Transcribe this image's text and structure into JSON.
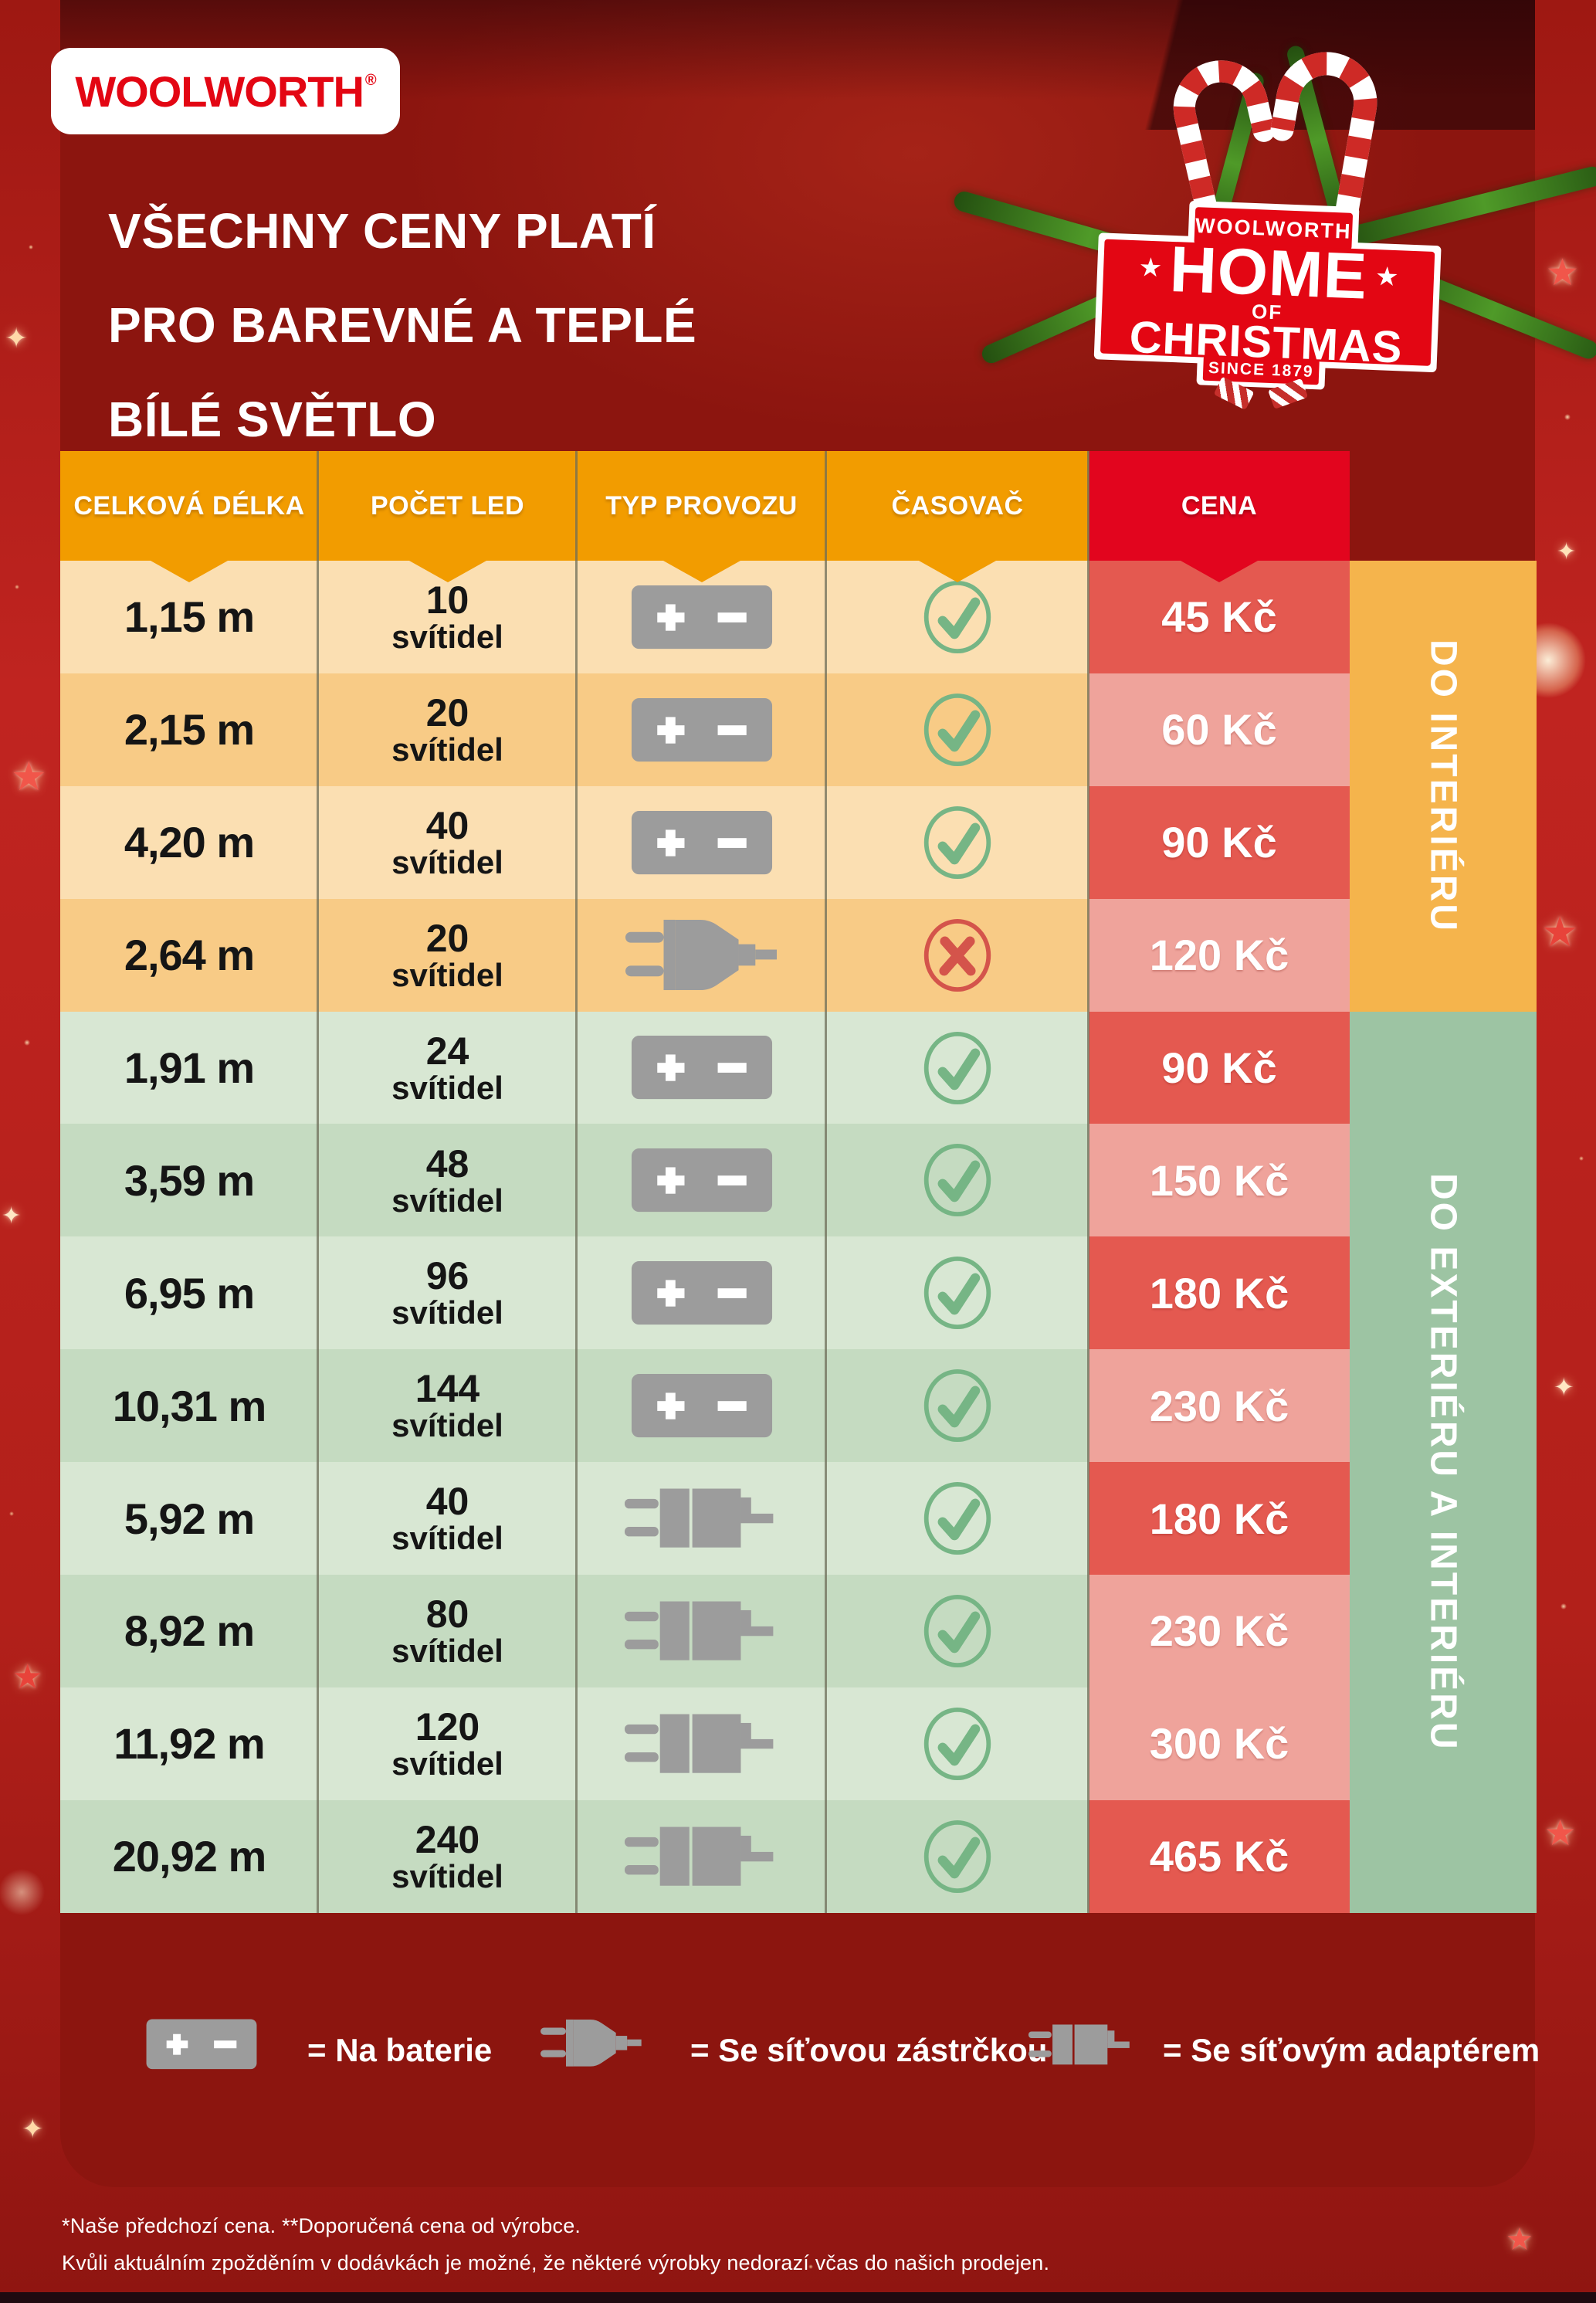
{
  "brand": {
    "logo": "WOOLWORTH",
    "registered": "®"
  },
  "title": {
    "line1": "VŠECHNY CENY PLATÍ",
    "line2": "PRO BAREVNÉ A TEPLÉ",
    "line3": "BÍLÉ SVĚTLO"
  },
  "badge": {
    "brand": "WOOLWORTH",
    "home": "HOME",
    "of": "OF",
    "christmas": "CHRISTMAS",
    "since": "SINCE 1879",
    "star": "★"
  },
  "table": {
    "headers": [
      {
        "label": "CELKOVÁ DÉLKA"
      },
      {
        "label": "POČET LED"
      },
      {
        "label": "TYP PROVOZU"
      },
      {
        "label": "ČASOVAČ"
      },
      {
        "label": "CENA"
      }
    ],
    "rows": [
      {
        "length": "1,15 m",
        "led_count": "10",
        "led_unit": "svítidel",
        "power": "battery",
        "timer": true,
        "price": "45 Kč",
        "zone": "interior",
        "shade": "light",
        "price_shade": "dark"
      },
      {
        "length": "2,15 m",
        "led_count": "20",
        "led_unit": "svítidel",
        "power": "battery",
        "timer": true,
        "price": "60 Kč",
        "zone": "interior",
        "shade": "dark",
        "price_shade": "light"
      },
      {
        "length": "4,20 m",
        "led_count": "40",
        "led_unit": "svítidel",
        "power": "battery",
        "timer": true,
        "price": "90 Kč",
        "zone": "interior",
        "shade": "light",
        "price_shade": "dark"
      },
      {
        "length": "2,64 m",
        "led_count": "20",
        "led_unit": "svítidel",
        "power": "plug",
        "timer": false,
        "price": "120 Kč",
        "zone": "interior",
        "shade": "dark",
        "price_shade": "light"
      },
      {
        "length": "1,91 m",
        "led_count": "24",
        "led_unit": "svítidel",
        "power": "battery",
        "timer": true,
        "price": "90 Kč",
        "zone": "exterior",
        "shade": "light",
        "price_shade": "dark"
      },
      {
        "length": "3,59 m",
        "led_count": "48",
        "led_unit": "svítidel",
        "power": "battery",
        "timer": true,
        "price": "150 Kč",
        "zone": "exterior",
        "shade": "dark",
        "price_shade": "light"
      },
      {
        "length": "6,95 m",
        "led_count": "96",
        "led_unit": "svítidel",
        "power": "battery",
        "timer": true,
        "price": "180 Kč",
        "zone": "exterior",
        "shade": "light",
        "price_shade": "dark"
      },
      {
        "length": "10,31 m",
        "led_count": "144",
        "led_unit": "svítidel",
        "power": "battery",
        "timer": true,
        "price": "230 Kč",
        "zone": "exterior",
        "shade": "dark",
        "price_shade": "light"
      },
      {
        "length": "5,92 m",
        "led_count": "40",
        "led_unit": "svítidel",
        "power": "adapter",
        "timer": true,
        "price": "180 Kč",
        "zone": "exterior",
        "shade": "light",
        "price_shade": "dark"
      },
      {
        "length": "8,92 m",
        "led_count": "80",
        "led_unit": "svítidel",
        "power": "adapter",
        "timer": true,
        "price": "230 Kč",
        "zone": "exterior",
        "shade": "dark",
        "price_shade": "light"
      },
      {
        "length": "11,92 m",
        "led_count": "120",
        "led_unit": "svítidel",
        "power": "adapter",
        "timer": true,
        "price": "300 Kč",
        "zone": "exterior",
        "shade": "light",
        "price_shade": "light"
      },
      {
        "length": "20,92 m",
        "led_count": "240",
        "led_unit": "svítidel",
        "power": "adapter",
        "timer": true,
        "price": "465 Kč",
        "zone": "exterior",
        "shade": "dark",
        "price_shade": "dark"
      }
    ]
  },
  "sidebar": {
    "interior": "DO INTERIÉRU",
    "exterior": "DO EXTERIÉRU A INTERIÉRU"
  },
  "legend": [
    {
      "icon": "battery",
      "label": "= Na baterie"
    },
    {
      "icon": "plug",
      "label": "= Se síťovou zástrčkou"
    },
    {
      "icon": "adapter",
      "label": "= Se síťovým adaptérem"
    }
  ],
  "footnotes": {
    "line1": "*Naše předchozí cena. **Doporučená cena od výrobce.",
    "line2": "Kvůli aktuálním zpožděním v dodávkách je možné, že některé výrobky nedorazí včas do našich prodejen."
  },
  "decor": {
    "star": "★",
    "sparkle": "✦"
  },
  "colors": {
    "brand_red": "#E30613",
    "frame_red": "#B2201A",
    "panel_red": "#8C150F",
    "header_orange": "#F29C00",
    "header_red": "#E2051E",
    "row_cream_light": "#FBDFB2",
    "row_cream_dark": "#F8CB86",
    "row_green_light": "#D8E7D3",
    "row_green_dark": "#C5DBC1",
    "price_dark": "#E45950",
    "price_light": "#EFA39B",
    "sidebar_orange": "#F5B44C",
    "sidebar_green": "#9DC4A3",
    "icon_gray": "#9C9C9C",
    "check_green": "#76B585",
    "cross_red": "#D4544B",
    "divider": "#6E6E58"
  }
}
